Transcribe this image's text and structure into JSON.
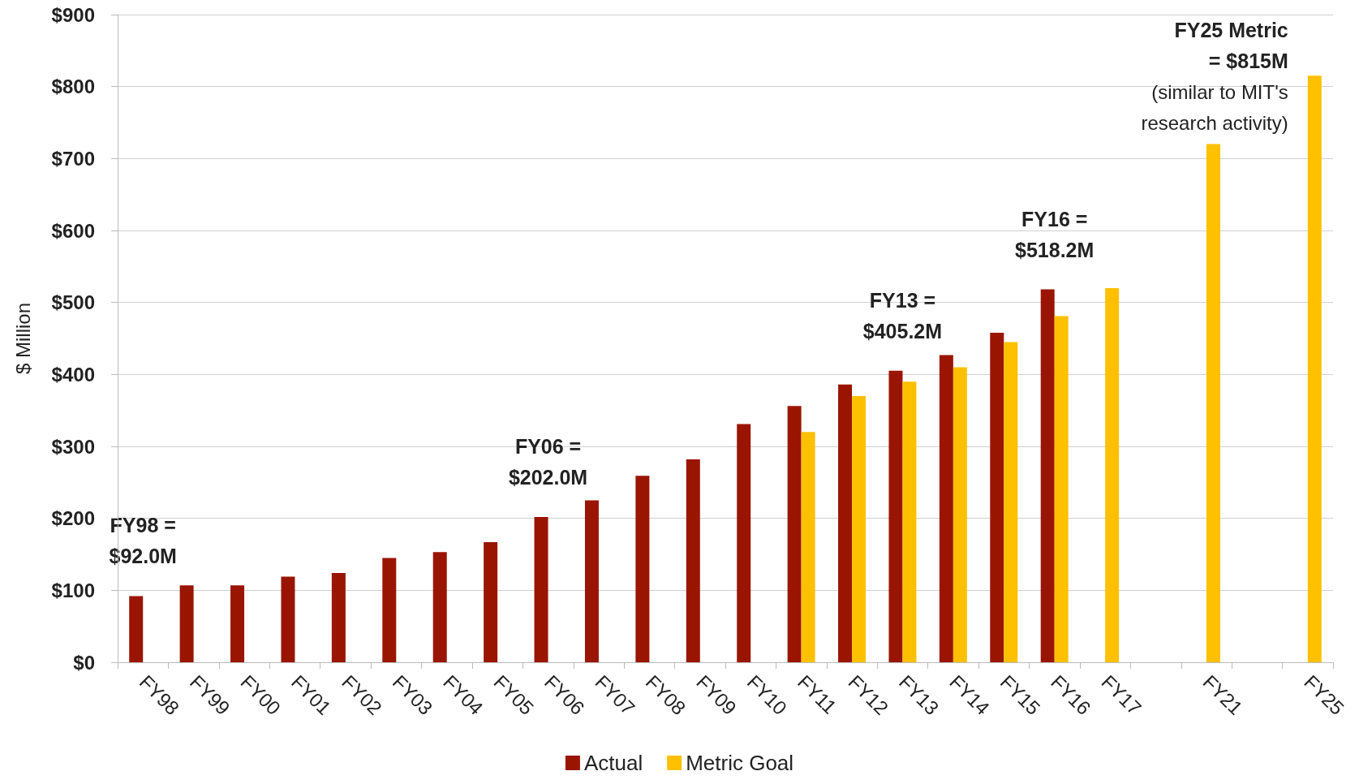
{
  "chart_data": {
    "type": "bar",
    "ylabel": "$ Million",
    "categories": [
      "FY98",
      "FY99",
      "FY00",
      "FY01",
      "FY02",
      "FY03",
      "FY04",
      "FY05",
      "FY06",
      "FY07",
      "FY08",
      "FY09",
      "FY10",
      "FY11",
      "FY12",
      "FY13",
      "FY14",
      "FY15",
      "FY16",
      "FY17",
      null,
      "FY21",
      null,
      "FY25"
    ],
    "series": [
      {
        "name": "Actual",
        "color": "#9a1500",
        "values": [
          92.0,
          107,
          107,
          119,
          124,
          145,
          153,
          167,
          202.0,
          225,
          259,
          282,
          331,
          356,
          386,
          405.2,
          427,
          458,
          518.2,
          null,
          null,
          null,
          null,
          null
        ]
      },
      {
        "name": "Metric Goal",
        "color": "#ffc000",
        "values": [
          null,
          null,
          null,
          null,
          null,
          null,
          null,
          null,
          null,
          null,
          null,
          null,
          null,
          320,
          370,
          390,
          410,
          445,
          481,
          520,
          null,
          720,
          null,
          815
        ]
      }
    ],
    "ylim": [
      0,
      900
    ],
    "yticks": [
      {
        "value": 0,
        "label": "$0"
      },
      {
        "value": 100,
        "label": "$100"
      },
      {
        "value": 200,
        "label": "$200"
      },
      {
        "value": 300,
        "label": "$300"
      },
      {
        "value": 400,
        "label": "$400"
      },
      {
        "value": 500,
        "label": "$500"
      },
      {
        "value": 600,
        "label": "$600"
      },
      {
        "value": 700,
        "label": "$700"
      },
      {
        "value": 800,
        "label": "$800"
      },
      {
        "value": 900,
        "label": "$900"
      }
    ],
    "grid": "y",
    "legend": "bottom",
    "annotations": [
      {
        "text": "FY98 =\n$92.0M",
        "x": "FY98",
        "y": 92.0
      },
      {
        "text": "FY06 =\n$202.0M",
        "x": "FY06",
        "y": 202.0
      },
      {
        "text": "FY13 =\n$405.2M",
        "x": "FY13",
        "y": 405.2
      },
      {
        "text": "FY16 =\n$518.2M",
        "x": "FY16",
        "y": 518.2
      },
      {
        "text": "FY25 Metric\n= $815M",
        "x": "FY25",
        "y": 815
      },
      "(similar to MIT's\nresearch activity)"
    ]
  }
}
